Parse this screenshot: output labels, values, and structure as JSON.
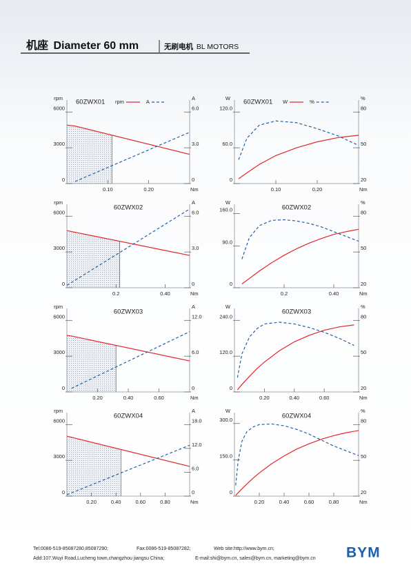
{
  "header": {
    "title_cn": "机座",
    "title": "Diameter 60 mm",
    "subtitle_cn": "无刷电机",
    "subtitle": "BL MOTORS"
  },
  "chart_data": [
    {
      "type": "line",
      "title": "60ZWX01",
      "x_label": "Nm",
      "y_label": "rpm",
      "y2_label": "A",
      "legend": true,
      "shade_to": 0.11,
      "x": [
        0,
        0.02,
        0.3
      ],
      "xlim": [
        0,
        0.3
      ],
      "xticks": [
        {
          "value": 0.1,
          "label": "0.10"
        },
        {
          "value": 0.2,
          "label": "0.20"
        }
      ],
      "ylim": [
        0,
        7000
      ],
      "yticks": [
        0,
        3000,
        6000
      ],
      "y2lim": [
        0,
        7
      ],
      "y2ticks": [
        0,
        {
          "value": 3,
          "label": "3.0"
        },
        {
          "value": 6,
          "label": "6.0"
        }
      ],
      "series": [
        {
          "name": "rpm",
          "color": "#e0262b",
          "style": "solid",
          "values": [
            4900,
            4820,
            2450
          ]
        },
        {
          "name": "A",
          "color": "#1f5fa8",
          "style": "dashed",
          "axis": "y2",
          "values": [
            null,
            0.17,
            4.3
          ]
        }
      ]
    },
    {
      "type": "line",
      "title": "60ZWX01",
      "x_label": "Nm",
      "y_label": "W",
      "y2_label": "%",
      "legend": true,
      "x": [
        0.01,
        0.03,
        0.06,
        0.1,
        0.15,
        0.2,
        0.25,
        0.3
      ],
      "xlim": [
        0,
        0.3
      ],
      "xticks": [
        {
          "value": 0.1,
          "label": "0.10"
        },
        {
          "value": 0.2,
          "label": "0.20"
        }
      ],
      "ylim": [
        0,
        140
      ],
      "yticks": [
        0,
        {
          "value": 60,
          "label": "60.0"
        },
        {
          "value": 120,
          "label": "120.0"
        }
      ],
      "y2lim": [
        20,
        90
      ],
      "y2ticks": [
        20,
        50,
        80
      ],
      "series": [
        {
          "name": "W",
          "color": "#e0262b",
          "style": "solid",
          "values": [
            8,
            18,
            32,
            47,
            60,
            70,
            77,
            81
          ]
        },
        {
          "name": "%",
          "color": "#1f5fa8",
          "style": "dashed",
          "axis": "y2",
          "values": [
            40,
            58,
            69,
            72.5,
            71,
            66,
            60,
            52
          ]
        }
      ]
    },
    {
      "type": "line",
      "title": "60ZWX02",
      "x_label": "Nm",
      "y_label": "rpm",
      "y2_label": "A",
      "legend": false,
      "shade_to": 0.215,
      "x": [
        0,
        0.5
      ],
      "xlim": [
        0,
        0.5
      ],
      "xticks": [
        0.2,
        {
          "value": 0.4,
          "label": "0.40"
        }
      ],
      "ylim": [
        0,
        7000
      ],
      "yticks": [
        0,
        3000,
        6000
      ],
      "y2lim": [
        0,
        7
      ],
      "y2ticks": [
        0,
        {
          "value": 3,
          "label": "3.0"
        },
        {
          "value": 6,
          "label": "6.0"
        }
      ],
      "series": [
        {
          "color": "#e0262b",
          "style": "solid",
          "values": [
            4790,
            2710
          ]
        },
        {
          "color": "#1f5fa8",
          "style": "dashed",
          "axis": "y2",
          "values": [
            0.2,
            6.6
          ]
        }
      ]
    },
    {
      "type": "line",
      "title": "60ZWX02",
      "x_label": "Nm",
      "y_label": "W",
      "y2_label": "%",
      "legend": false,
      "x": [
        0.03,
        0.06,
        0.1,
        0.15,
        0.2,
        0.25,
        0.3,
        0.35,
        0.4,
        0.45,
        0.5
      ],
      "xlim": [
        0,
        0.5
      ],
      "xticks": [
        0.2,
        {
          "value": 0.4,
          "label": "0.40"
        }
      ],
      "ylim": [
        0,
        180
      ],
      "yticks": [
        0,
        {
          "value": 90,
          "label": "90.0"
        },
        {
          "value": 160,
          "label": "160.0"
        }
      ],
      "y2lim": [
        20,
        90
      ],
      "y2ticks": [
        20,
        50,
        80
      ],
      "series": [
        {
          "color": "#e0262b",
          "style": "solid",
          "values": [
            8,
            20,
            36,
            54,
            70,
            84,
            96,
            106,
            115,
            121,
            126
          ]
        },
        {
          "color": "#1f5fa8",
          "style": "dashed",
          "axis": "y2",
          "values": [
            44,
            62,
            72,
            76.5,
            77,
            76,
            74,
            71,
            67,
            63,
            59
          ]
        }
      ]
    },
    {
      "type": "line",
      "title": "60ZWX03",
      "x_label": "Nm",
      "y_label": "rpm",
      "y2_label": "A",
      "legend": false,
      "shade_to": 0.32,
      "x": [
        0,
        0.03,
        0.8
      ],
      "xlim": [
        0,
        0.8
      ],
      "xticks": [
        {
          "value": 0.2,
          "label": "0.20"
        },
        {
          "value": 0.4,
          "label": "0.40"
        },
        {
          "value": 0.6,
          "label": "0.60"
        }
      ],
      "ylim": [
        0,
        7000
      ],
      "yticks": [
        0,
        3000,
        6000
      ],
      "y2lim": [
        0,
        14
      ],
      "y2ticks": [
        0,
        {
          "value": 6,
          "label": "6.0"
        },
        {
          "value": 12,
          "label": "12.0"
        }
      ],
      "series": [
        {
          "color": "#e0262b",
          "style": "solid",
          "values": [
            4740,
            4690,
            2600
          ]
        },
        {
          "color": "#1f5fa8",
          "style": "dashed",
          "axis": "y2",
          "values": [
            null,
            0.6,
            10.1
          ]
        }
      ]
    },
    {
      "type": "line",
      "title": "60ZWX03",
      "x_label": "Nm",
      "y_label": "W",
      "y2_label": "%",
      "legend": false,
      "x": [
        0.02,
        0.05,
        0.1,
        0.15,
        0.2,
        0.3,
        0.4,
        0.5,
        0.6,
        0.7,
        0.8
      ],
      "xlim": [
        0,
        0.83
      ],
      "xticks": [
        {
          "value": 0.2,
          "label": "0.20"
        },
        {
          "value": 0.4,
          "label": "0.40"
        },
        {
          "value": 0.6,
          "label": "0.60"
        }
      ],
      "ylim": [
        0,
        280
      ],
      "yticks": [
        0,
        {
          "value": 120,
          "label": "120.0"
        },
        {
          "value": 240,
          "label": "240.0"
        }
      ],
      "y2lim": [
        20,
        90
      ],
      "y2ticks": [
        20,
        50,
        80
      ],
      "series": [
        {
          "color": "#e0262b",
          "style": "solid",
          "values": [
            7,
            25,
            52,
            78,
            100,
            138,
            168,
            190,
            207,
            218,
            225
          ]
        },
        {
          "color": "#1f5fa8",
          "style": "dashed",
          "axis": "y2",
          "values": [
            32,
            52,
            66,
            73,
            77,
            78.5,
            77,
            74,
            70,
            65,
            59
          ]
        }
      ]
    },
    {
      "type": "line",
      "title": "60ZWX04",
      "x_label": "Nm",
      "y_label": "rpm",
      "y2_label": "A",
      "legend": false,
      "shade_to": 0.44,
      "x": [
        0,
        1
      ],
      "xlim": [
        0,
        1
      ],
      "xticks": [
        {
          "value": 0.2,
          "label": "0.20"
        },
        {
          "value": 0.4,
          "label": "0.40"
        },
        {
          "value": 0.6,
          "label": "0.60"
        },
        {
          "value": 0.8,
          "label": "0.80"
        }
      ],
      "ylim": [
        0,
        7000
      ],
      "yticks": [
        0,
        3000,
        6000
      ],
      "y2lim": [
        0,
        21
      ],
      "y2ticks": [
        0,
        {
          "value": 6,
          "label": "6.0"
        },
        {
          "value": 12,
          "label": "12.0"
        },
        {
          "value": 18,
          "label": "18.0"
        }
      ],
      "series": [
        {
          "color": "#e0262b",
          "style": "solid",
          "values": [
            5030,
            2490
          ]
        },
        {
          "color": "#1f5fa8",
          "style": "dashed",
          "axis": "y2",
          "values": [
            0.35,
            12.8
          ]
        }
      ]
    },
    {
      "type": "line",
      "title": "60ZWX04",
      "x_label": "Nm",
      "y_label": "W",
      "y2_label": "%",
      "legend": false,
      "x": [
        0.01,
        0.03,
        0.06,
        0.1,
        0.15,
        0.2,
        0.3,
        0.4,
        0.5,
        0.6,
        0.7,
        0.8,
        0.9,
        1.0
      ],
      "xlim": [
        0,
        1
      ],
      "xticks": [
        {
          "value": 0.2,
          "label": "0.20"
        },
        {
          "value": 0.4,
          "label": "0.40"
        },
        {
          "value": 0.6,
          "label": "0.60"
        },
        {
          "value": 0.8,
          "label": "0.80"
        }
      ],
      "ylim": [
        0,
        345
      ],
      "yticks": [
        0,
        {
          "value": 150,
          "label": "150.0"
        },
        {
          "value": 300,
          "label": "300.0"
        }
      ],
      "y2lim": [
        20,
        90
      ],
      "y2ticks": [
        20,
        50,
        80
      ],
      "series": [
        {
          "color": "#e0262b",
          "style": "solid",
          "values": [
            3,
            14,
            30,
            50,
            74,
            96,
            134,
            166,
            194,
            216,
            235,
            250,
            262,
            271
          ]
        },
        {
          "color": "#1f5fa8",
          "style": "dashed",
          "axis": "y2",
          "values": [
            29,
            50,
            66,
            74,
            78,
            80,
            80.5,
            79,
            76,
            72,
            67,
            62,
            58,
            54
          ]
        }
      ]
    }
  ],
  "footer": {
    "tel": "Tel:0086-519-85087280,85087290;",
    "fax": "Fax:0086-519-85087282;",
    "web": "Web site:http://www.bym.cn;",
    "address": "Add:107,Wuyi Road,Lucheng town,changzhou jiangsu China;",
    "email": "E-mail:shi@bym.cn, sales@bym.cn, marketing@bym.cn",
    "logo": "BYM"
  }
}
